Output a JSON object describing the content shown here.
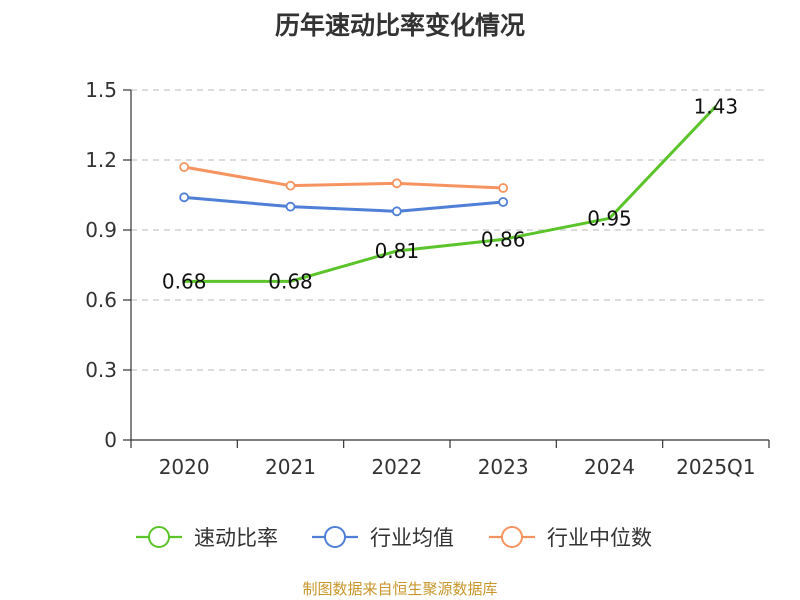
{
  "chart_data": {
    "type": "line",
    "title": "历年速动比率变化情况",
    "categories": [
      "2020",
      "2021",
      "2022",
      "2023",
      "2024",
      "2025Q1"
    ],
    "ylim": [
      0,
      1.5
    ],
    "yticks": [
      "0",
      "0.3",
      "0.6",
      "0.9",
      "1.2",
      "1.5"
    ],
    "yticks_values": [
      0,
      0.3,
      0.6,
      0.9,
      1.2,
      1.5
    ],
    "grid": true,
    "legend_position": "bottom",
    "series": [
      {
        "name": "速动比率",
        "color": "#5cc42b",
        "values": [
          0.68,
          0.68,
          0.81,
          0.86,
          0.95,
          1.43
        ],
        "labels": [
          "0.68",
          "0.68",
          "0.81",
          "0.86",
          "0.95",
          "1.43"
        ]
      },
      {
        "name": "行业均值",
        "color": "#4f7fd6",
        "values": [
          1.04,
          1.0,
          0.98,
          1.02,
          null,
          null
        ]
      },
      {
        "name": "行业中位数",
        "color": "#f59460",
        "values": [
          1.17,
          1.09,
          1.1,
          1.08,
          null,
          null
        ]
      }
    ]
  },
  "source": "制图数据来自恒生聚源数据库"
}
